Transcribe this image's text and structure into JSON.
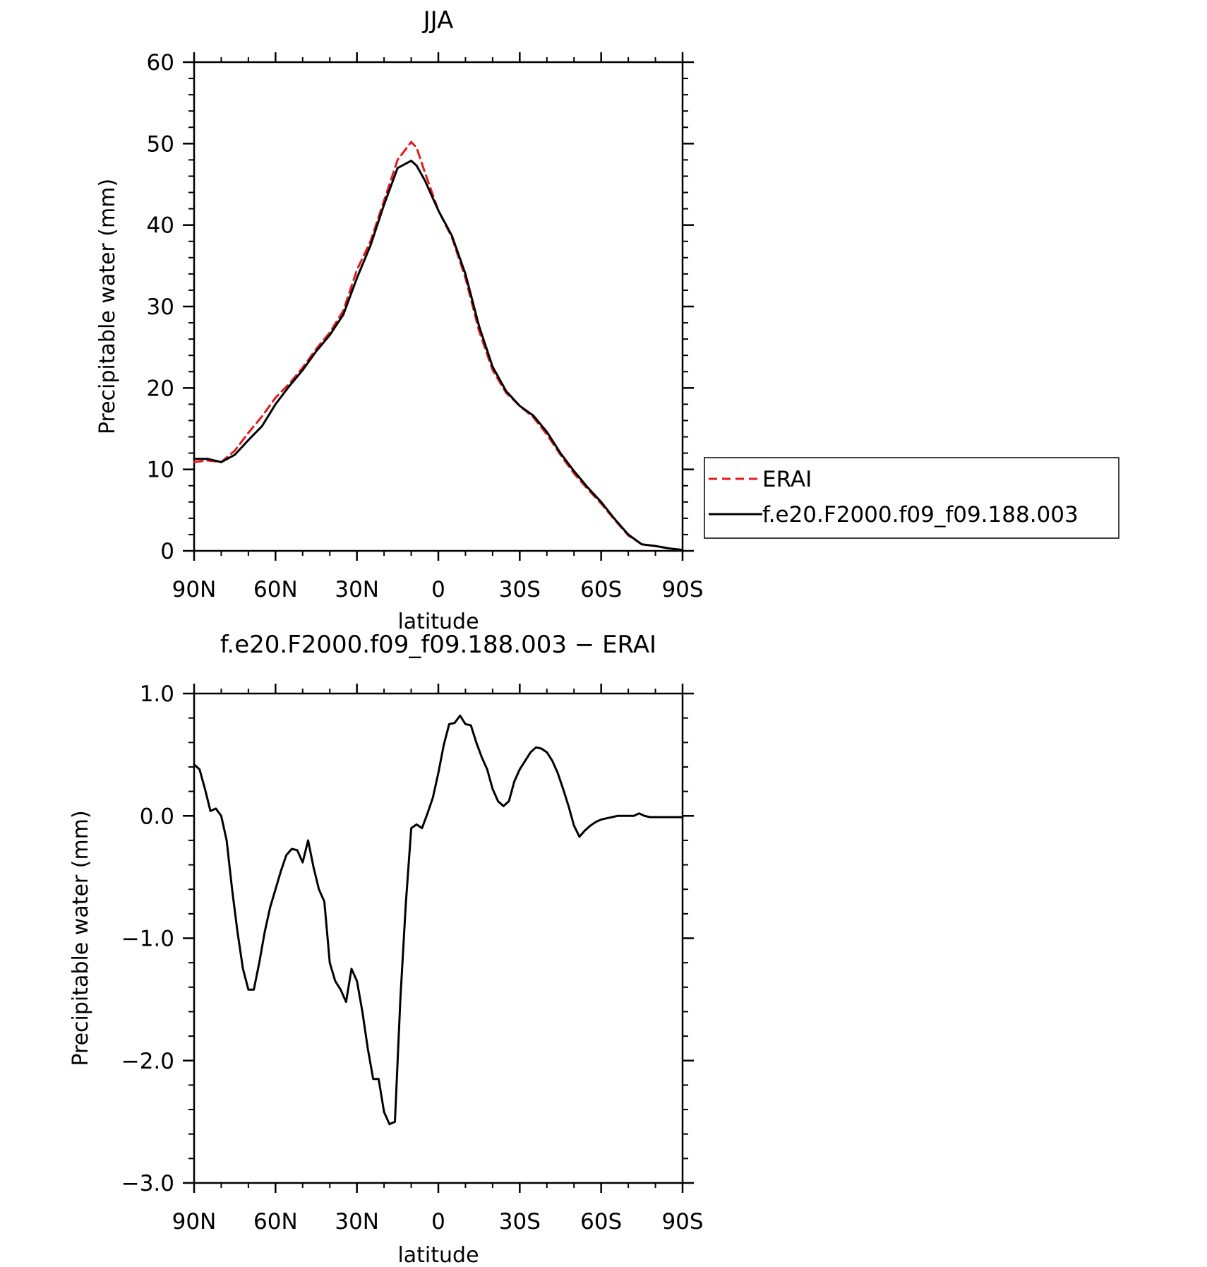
{
  "chart_data": [
    {
      "type": "line",
      "title": "JJA",
      "xlabel": "latitude",
      "ylabel": "Precipitable water (mm)",
      "xlim": [
        90,
        -90
      ],
      "ylim": [
        0,
        60
      ],
      "x_ticks": [
        90,
        60,
        30,
        0,
        -30,
        -60,
        -90
      ],
      "x_tick_labels": [
        "90N",
        "60N",
        "30N",
        "0",
        "30S",
        "60S",
        "90S"
      ],
      "y_ticks": [
        0,
        10,
        20,
        30,
        40,
        50,
        60
      ],
      "y_tick_labels": [
        "0",
        "10",
        "20",
        "30",
        "40",
        "50",
        "60"
      ],
      "legend_position": "right",
      "series": [
        {
          "name": "ERAI",
          "color": "#e41a1c",
          "style": "dashed",
          "x": [
            90,
            85,
            80,
            75,
            70,
            65,
            60,
            55,
            50,
            45,
            40,
            35,
            30,
            25,
            20,
            15,
            10,
            8,
            5,
            0,
            -5,
            -10,
            -15,
            -20,
            -25,
            -30,
            -35,
            -40,
            -45,
            -50,
            -55,
            -60,
            -65,
            -70,
            -75,
            -80,
            -85,
            -90
          ],
          "values": [
            10.9,
            11.1,
            10.9,
            12.3,
            14.5,
            16.5,
            18.8,
            20.5,
            22.5,
            24.8,
            26.8,
            29.5,
            34.5,
            38.0,
            43.0,
            48.0,
            50.2,
            49.5,
            46.5,
            41.8,
            38.5,
            33.5,
            27.0,
            22.2,
            19.4,
            17.8,
            16.4,
            14.3,
            11.8,
            9.5,
            7.6,
            5.8,
            3.8,
            1.9,
            0.8,
            0.6,
            0.3,
            0.1
          ]
        },
        {
          "name": "f.e20.F2000.f09_f09.188.003",
          "color": "#000000",
          "style": "solid",
          "x": [
            90,
            85,
            80,
            75,
            70,
            65,
            60,
            55,
            50,
            45,
            40,
            35,
            30,
            25,
            20,
            15,
            10,
            8,
            5,
            0,
            -5,
            -10,
            -15,
            -20,
            -25,
            -30,
            -35,
            -40,
            -45,
            -50,
            -55,
            -60,
            -65,
            -70,
            -75,
            -80,
            -85,
            -90
          ],
          "values": [
            11.3,
            11.3,
            10.9,
            11.8,
            13.6,
            15.3,
            18.0,
            20.2,
            22.2,
            24.5,
            26.5,
            29.0,
            33.5,
            37.5,
            42.5,
            47.0,
            47.9,
            47.3,
            45.5,
            41.8,
            38.7,
            34.0,
            27.6,
            22.6,
            19.6,
            17.8,
            16.6,
            14.6,
            12.0,
            9.8,
            7.8,
            6.0,
            3.9,
            2.0,
            0.8,
            0.6,
            0.3,
            0.1
          ]
        }
      ]
    },
    {
      "type": "line",
      "title": "f.e20.F2000.f09_f09.188.003 − ERAI",
      "xlabel": "latitude",
      "ylabel": "Precipitable water (mm)",
      "xlim": [
        90,
        -90
      ],
      "ylim": [
        -3.0,
        1.0
      ],
      "x_ticks": [
        90,
        60,
        30,
        0,
        -30,
        -60,
        -90
      ],
      "x_tick_labels": [
        "90N",
        "60N",
        "30N",
        "0",
        "30S",
        "60S",
        "90S"
      ],
      "y_ticks": [
        1.0,
        0.0,
        -1.0,
        -2.0,
        -3.0
      ],
      "y_tick_labels": [
        "1.0",
        "0.0",
        "−1.0",
        "−2.0",
        "−3.0"
      ],
      "series": [
        {
          "color": "#000000",
          "style": "solid",
          "x": [
            90,
            88,
            86,
            84,
            82,
            80,
            78,
            76,
            74,
            72,
            70,
            68,
            66,
            64,
            62,
            60,
            58,
            56,
            54,
            52,
            50,
            48,
            46,
            44,
            42,
            40,
            38,
            36,
            34,
            32,
            30,
            28,
            26,
            24,
            22,
            20,
            18,
            16,
            14,
            12,
            10,
            8,
            6,
            4,
            2,
            0,
            -2,
            -4,
            -6,
            -8,
            -10,
            -12,
            -14,
            -16,
            -18,
            -20,
            -22,
            -24,
            -26,
            -28,
            -30,
            -32,
            -34,
            -36,
            -38,
            -40,
            -42,
            -44,
            -46,
            -48,
            -50,
            -52,
            -54,
            -56,
            -58,
            -60,
            -62,
            -64,
            -66,
            -68,
            -70,
            -72,
            -74,
            -76,
            -78,
            -80,
            -82,
            -84,
            -86,
            -88,
            -90
          ],
          "values": [
            0.42,
            0.38,
            0.22,
            0.04,
            0.06,
            0.0,
            -0.2,
            -0.6,
            -0.95,
            -1.25,
            -1.42,
            -1.42,
            -1.2,
            -0.95,
            -0.75,
            -0.6,
            -0.45,
            -0.32,
            -0.27,
            -0.28,
            -0.38,
            -0.2,
            -0.42,
            -0.6,
            -0.7,
            -1.2,
            -1.35,
            -1.42,
            -1.52,
            -1.25,
            -1.35,
            -1.6,
            -1.9,
            -2.15,
            -2.15,
            -2.42,
            -2.52,
            -2.5,
            -1.5,
            -0.72,
            -0.1,
            -0.07,
            -0.1,
            0.02,
            0.15,
            0.35,
            0.58,
            0.75,
            0.76,
            0.82,
            0.75,
            0.74,
            0.6,
            0.48,
            0.38,
            0.22,
            0.12,
            0.08,
            0.12,
            0.28,
            0.38,
            0.45,
            0.52,
            0.56,
            0.55,
            0.52,
            0.45,
            0.35,
            0.22,
            0.08,
            -0.08,
            -0.17,
            -0.12,
            -0.08,
            -0.05,
            -0.03,
            -0.02,
            -0.01,
            0.0,
            0.0,
            0.0,
            0.0,
            0.02,
            0.0,
            -0.01,
            -0.01,
            -0.01,
            -0.01,
            -0.01,
            -0.01,
            -0.01
          ]
        }
      ]
    }
  ]
}
